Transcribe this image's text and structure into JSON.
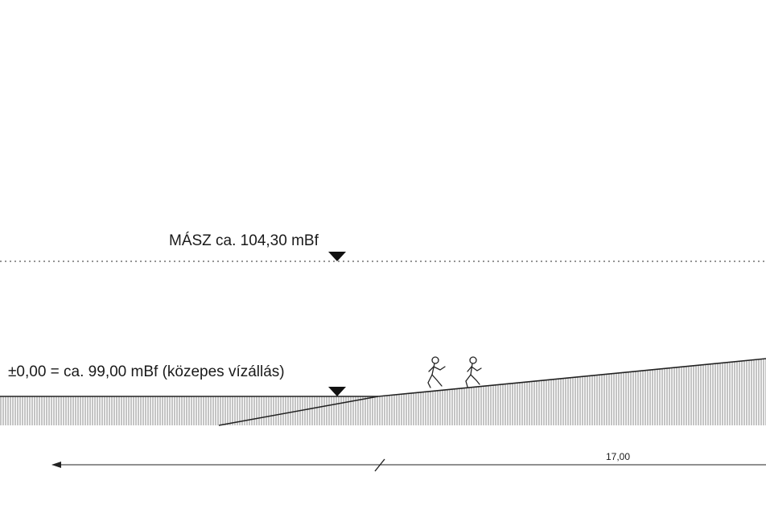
{
  "levels": {
    "flood_level_label": "MÁSZ ca. 104,30 mBf",
    "water_level_label": "±0,00 = ca. 99,00 mBf (közepes vízállás)"
  },
  "dimension": {
    "value_label": "17,00"
  },
  "figures": {
    "icons": [
      "runner-figure-icon",
      "runner-figure-icon"
    ]
  },
  "colors": {
    "line": "#1a1a1a",
    "hatch": "#8c8c8c",
    "background": "#ffffff"
  }
}
